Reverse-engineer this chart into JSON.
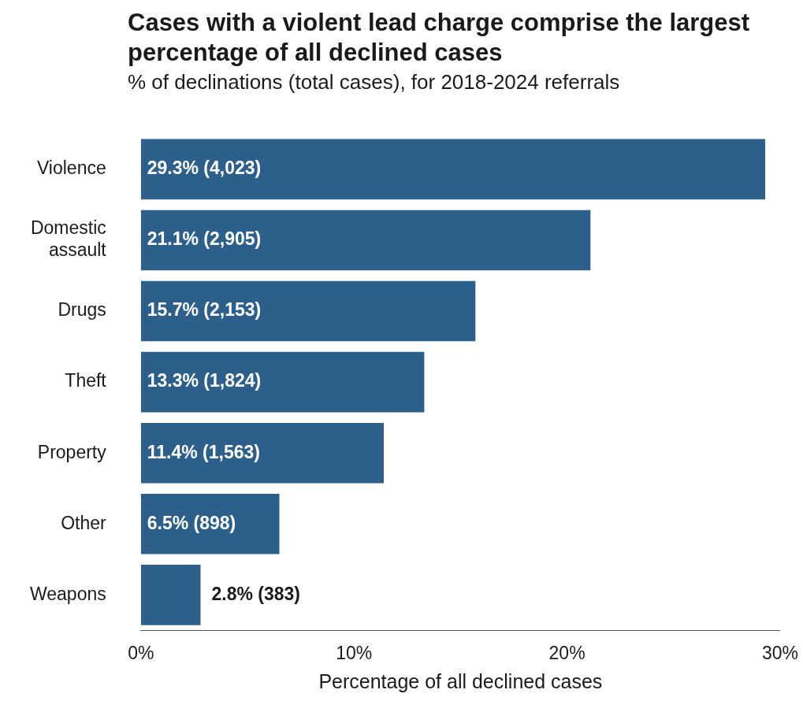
{
  "chart_data": {
    "type": "bar",
    "orientation": "horizontal",
    "title": "Cases with a violent lead charge comprise the largest percentage of all declined cases",
    "subtitle": "% of declinations (total cases), for 2018-2024 referrals",
    "xlabel": "Percentage of all declined cases",
    "categories": [
      "Violence",
      "Domestic assault",
      "Drugs",
      "Theft",
      "Property",
      "Other",
      "Weapons"
    ],
    "values": [
      29.3,
      21.1,
      15.7,
      13.3,
      11.4,
      6.5,
      2.8
    ],
    "value_labels": [
      "29.3% (4,023)",
      "21.1% (2,905)",
      "15.7% (2,153)",
      "13.3% (1,824)",
      "11.4% (1,563)",
      "6.5% (898)",
      "2.8% (383)"
    ],
    "color": "#2c5f8a",
    "xlim": [
      0,
      30
    ],
    "xticks": [
      {
        "value": 0,
        "label": "0%"
      },
      {
        "value": 10,
        "label": "10%"
      },
      {
        "value": 20,
        "label": "20%"
      },
      {
        "value": 30,
        "label": "30%"
      }
    ],
    "grid": false,
    "legend": false
  }
}
